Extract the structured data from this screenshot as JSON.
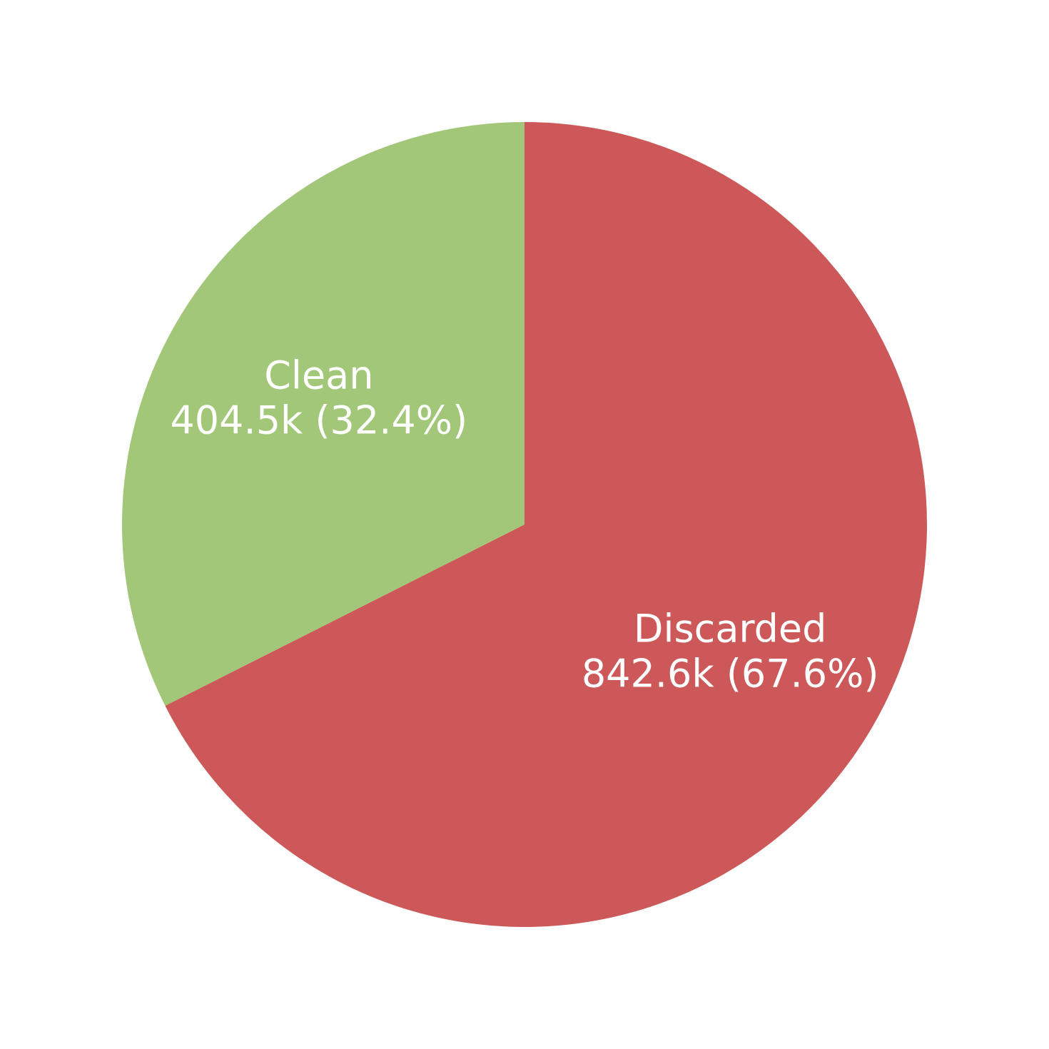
{
  "chart_data": {
    "type": "pie",
    "title": "",
    "slices": [
      {
        "name": "Discarded",
        "value": 842.6,
        "percent": 67.6,
        "value_text": "842.6k (67.6%)",
        "color": "#cd5859"
      },
      {
        "name": "Clean",
        "value": 404.5,
        "percent": 32.4,
        "value_text": "404.5k (32.4%)",
        "color": "#a2c779"
      }
    ],
    "start": "top",
    "direction": "clockwise",
    "legend": "none",
    "label_color": "#ffffff"
  }
}
